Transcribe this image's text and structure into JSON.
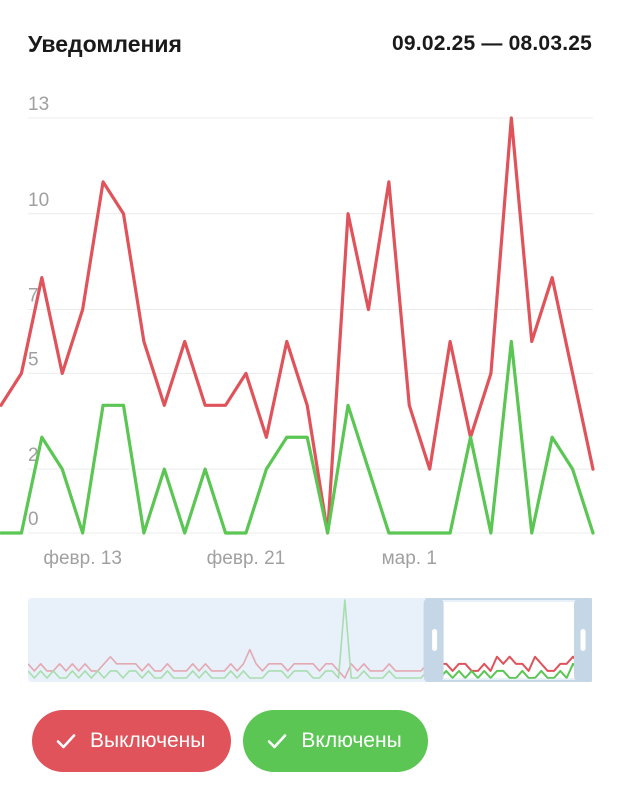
{
  "header": {
    "title": "Уведомления",
    "date_range": "09.02.25 — 08.03.25"
  },
  "colors": {
    "off": "#e0535b",
    "on": "#5bc653",
    "grid": "#ececec",
    "tick": "#a0a0a0",
    "navigator_bg": "#e8f1fa",
    "navigator_handle": "#c5d6e6"
  },
  "chart_data": {
    "type": "line",
    "y_ticks": [
      "0",
      "2",
      "5",
      "7",
      "10",
      "13"
    ],
    "ylim": [
      0,
      13
    ],
    "x_ticks": [
      {
        "label": "февр. 13",
        "index": 4
      },
      {
        "label": "февр. 21",
        "index": 12
      },
      {
        "label": "мар. 1",
        "index": 20
      }
    ],
    "series": [
      {
        "name": "Выключены",
        "color": "#e0535b",
        "values": [
          4,
          5,
          8,
          5,
          7,
          11,
          10,
          6,
          4,
          6,
          4,
          4,
          5,
          3,
          6,
          4,
          0,
          10,
          7,
          11,
          4,
          2,
          6,
          3,
          5,
          13,
          6,
          8,
          5,
          2
        ]
      },
      {
        "name": "Включены",
        "color": "#5bc653",
        "values": [
          0,
          0,
          3,
          2,
          0,
          4,
          4,
          0,
          2,
          0,
          2,
          0,
          0,
          2,
          3,
          3,
          0,
          4,
          2,
          0,
          0,
          0,
          0,
          3,
          0,
          6,
          0,
          3,
          2,
          0
        ]
      }
    ],
    "navigator": {
      "off": [
        2,
        1,
        2,
        1,
        1,
        2,
        1,
        2,
        1,
        2,
        1,
        1,
        2,
        3,
        2,
        2,
        2,
        2,
        1,
        2,
        1,
        1,
        2,
        1,
        1,
        1,
        2,
        1,
        2,
        1,
        1,
        1,
        2,
        1,
        2,
        4,
        2,
        1,
        2,
        2,
        2,
        1,
        2,
        2,
        2,
        2,
        1,
        2,
        2,
        1,
        0,
        2,
        1,
        2,
        1,
        1,
        1,
        2,
        1,
        1,
        1,
        1,
        1,
        2,
        3,
        2,
        2,
        1,
        2,
        2,
        1,
        1,
        2,
        1,
        3,
        2,
        3,
        2,
        2,
        1,
        3,
        2,
        1,
        1,
        2,
        2,
        3,
        2,
        2,
        2
      ],
      "on": [
        1,
        0,
        1,
        0,
        1,
        0,
        0,
        1,
        0,
        1,
        0,
        1,
        0,
        1,
        1,
        0,
        1,
        1,
        0,
        1,
        0,
        0,
        1,
        0,
        0,
        0,
        1,
        0,
        1,
        0,
        0,
        0,
        1,
        0,
        1,
        0,
        0,
        0,
        1,
        1,
        1,
        0,
        1,
        1,
        1,
        0,
        0,
        1,
        1,
        0,
        11,
        0,
        0,
        1,
        0,
        0,
        0,
        1,
        0,
        0,
        0,
        0,
        0,
        1,
        1,
        0,
        1,
        0,
        1,
        0,
        1,
        0,
        1,
        0,
        1,
        1,
        0,
        0,
        1,
        0,
        0,
        1,
        0,
        0,
        1,
        0,
        2,
        1,
        0,
        0
      ],
      "window_start": 0.705,
      "window_end": 1.0
    }
  },
  "legend": [
    {
      "label": "Выключены",
      "color": "#e0535b"
    },
    {
      "label": "Включены",
      "color": "#5bc653"
    }
  ]
}
